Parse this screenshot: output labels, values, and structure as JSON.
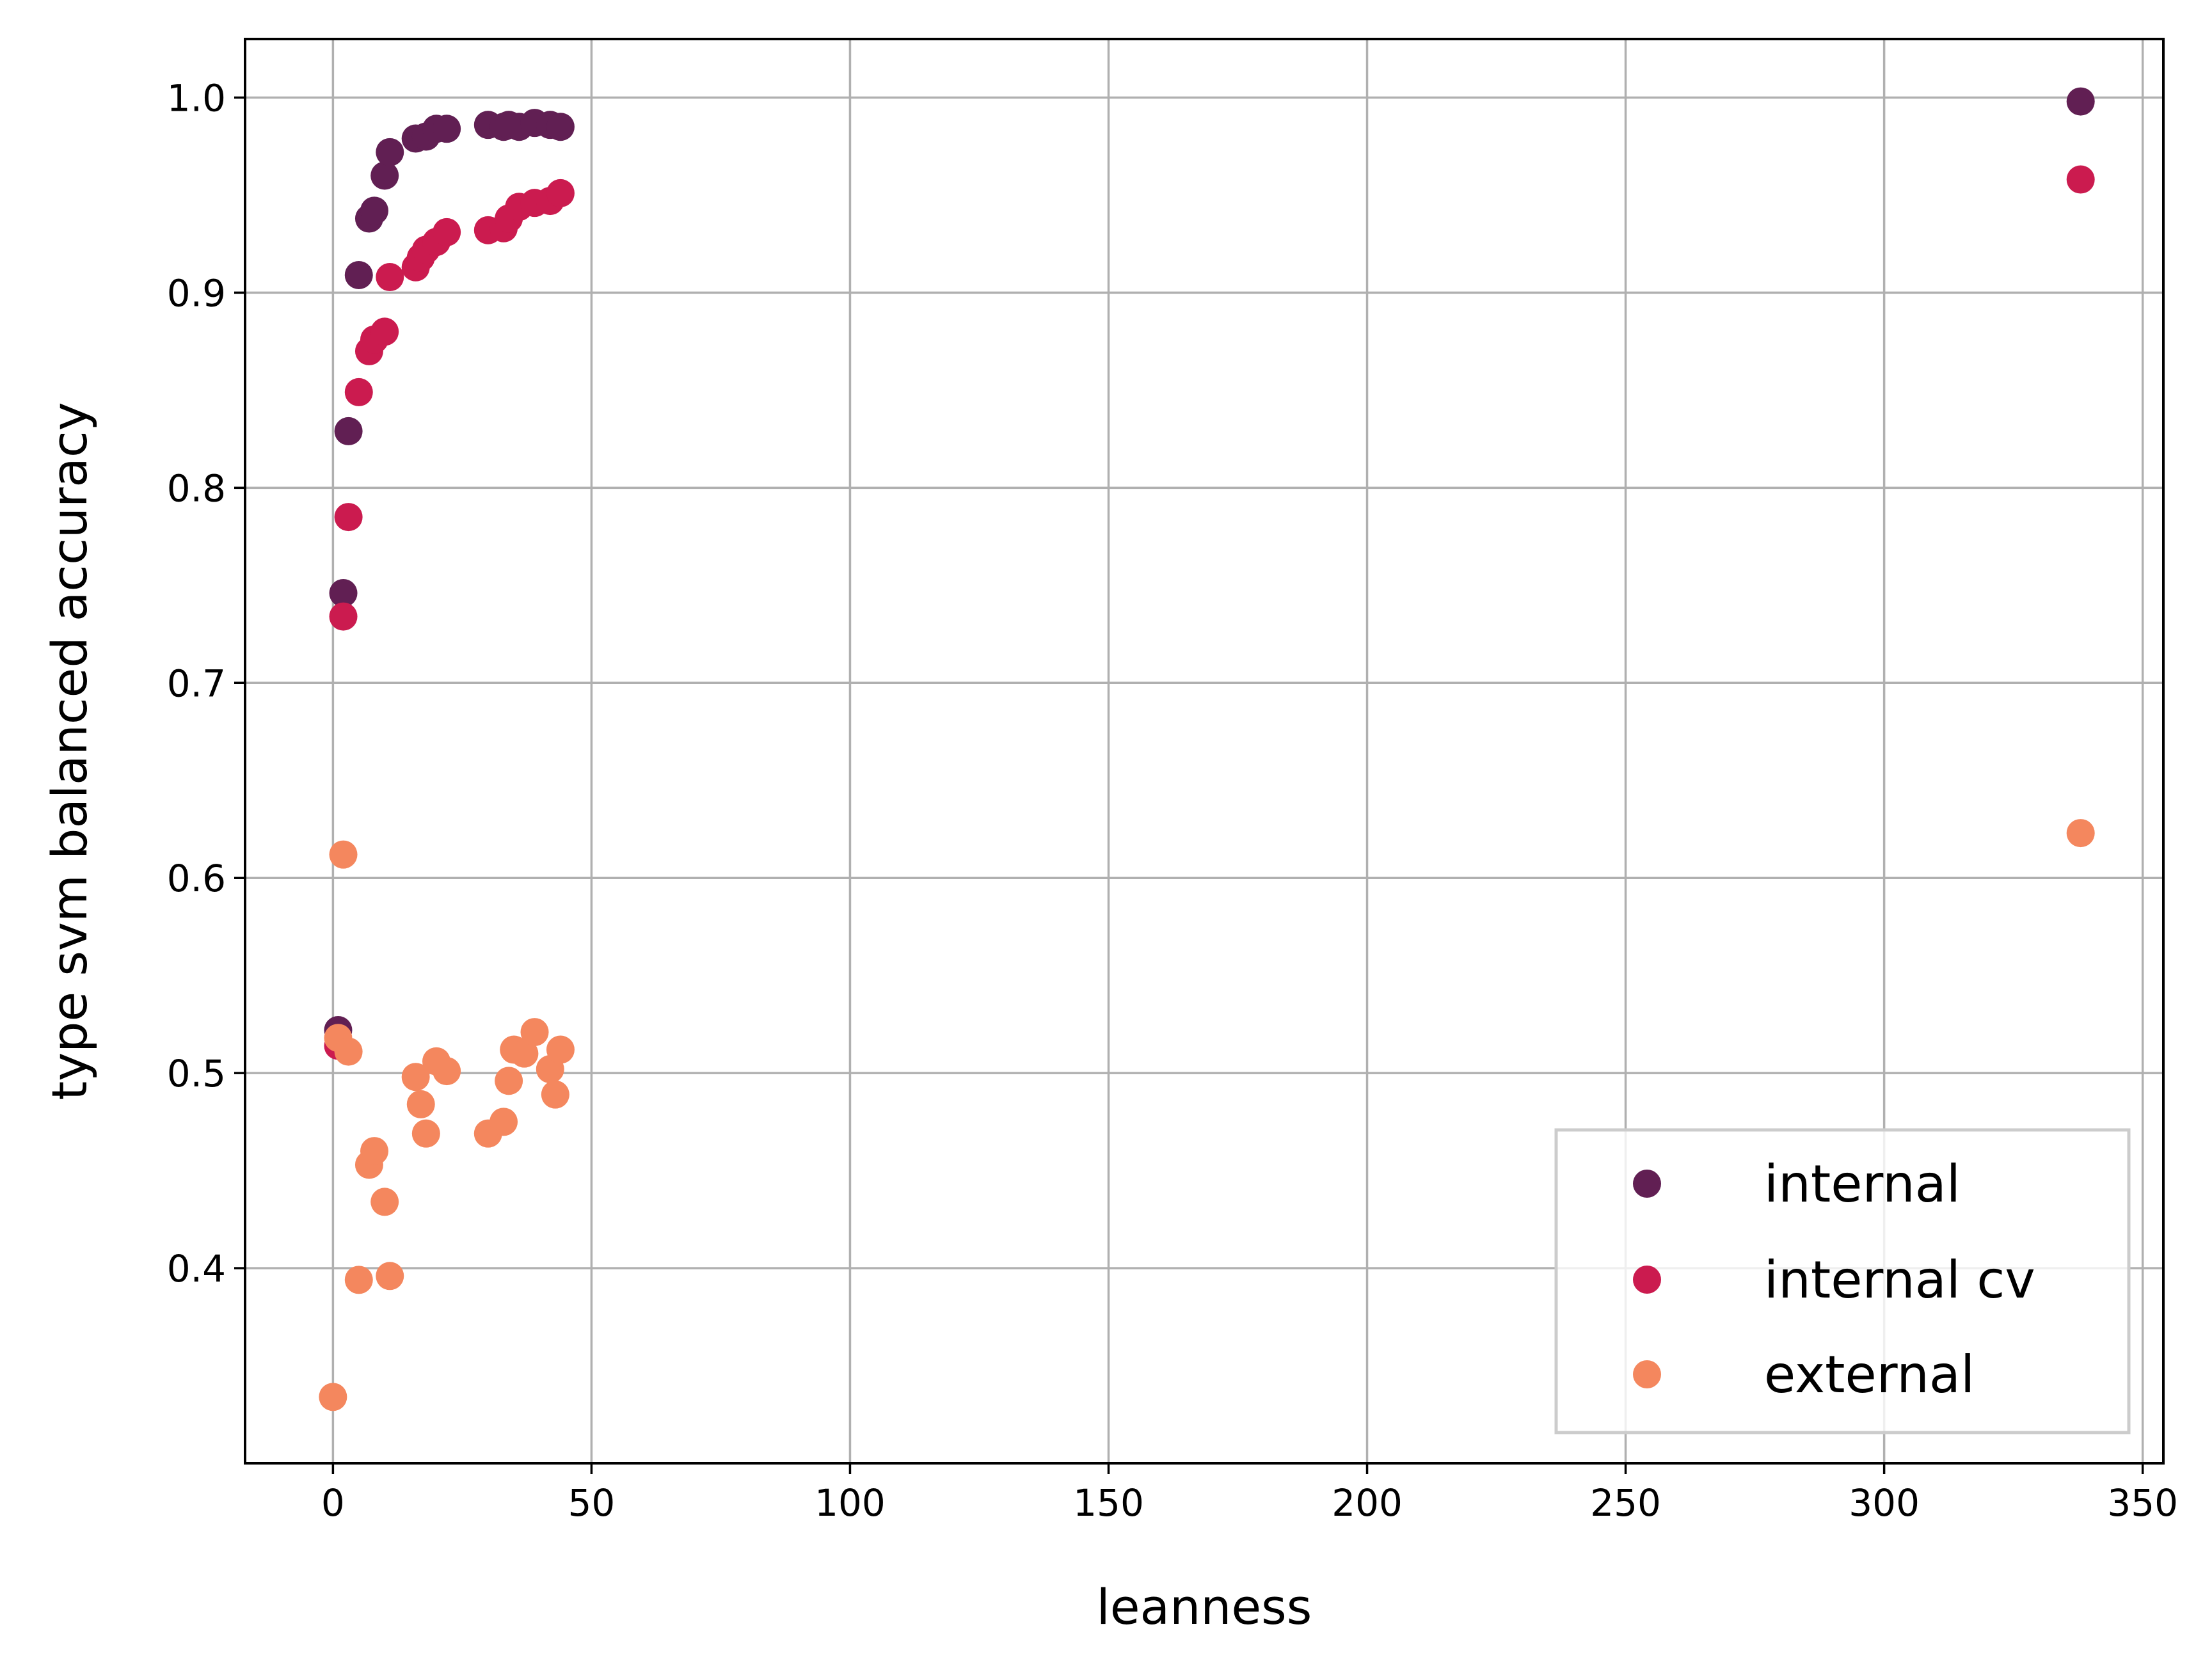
{
  "chart_data": {
    "type": "scatter",
    "title": "",
    "xlabel": "leanness",
    "ylabel": "type svm balanced accuracy",
    "xlim": [
      -17,
      354
    ],
    "ylim": [
      0.3,
      1.03
    ],
    "xticks": [
      0,
      50,
      100,
      150,
      200,
      250,
      300,
      350
    ],
    "xtick_labels": [
      "0",
      "50",
      "100",
      "150",
      "200",
      "250",
      "300",
      "350"
    ],
    "yticks": [
      0.4,
      0.5,
      0.6,
      0.7,
      0.8,
      0.9,
      1.0
    ],
    "ytick_labels": [
      "0.4",
      "0.5",
      "0.6",
      "0.7",
      "0.8",
      "0.9",
      "1.0"
    ],
    "grid": true,
    "legend_position": "lower-right",
    "series": [
      {
        "name": "internal",
        "color": "#611f53",
        "points": [
          [
            1,
            0.522
          ],
          [
            2,
            0.746
          ],
          [
            3,
            0.829
          ],
          [
            5,
            0.909
          ],
          [
            7,
            0.938
          ],
          [
            8,
            0.942
          ],
          [
            10,
            0.96
          ],
          [
            11,
            0.972
          ],
          [
            16,
            0.979
          ],
          [
            18,
            0.98
          ],
          [
            20,
            0.984
          ],
          [
            22,
            0.984
          ],
          [
            30,
            0.986
          ],
          [
            33,
            0.985
          ],
          [
            34,
            0.986
          ],
          [
            36,
            0.985
          ],
          [
            39,
            0.987
          ],
          [
            42,
            0.986
          ],
          [
            44,
            0.985
          ],
          [
            338,
            0.998
          ]
        ]
      },
      {
        "name": "internal cv",
        "color": "#cb1b4f",
        "points": [
          [
            1,
            0.514
          ],
          [
            2,
            0.734
          ],
          [
            3,
            0.785
          ],
          [
            5,
            0.849
          ],
          [
            7,
            0.87
          ],
          [
            8,
            0.876
          ],
          [
            10,
            0.88
          ],
          [
            11,
            0.908
          ],
          [
            16,
            0.913
          ],
          [
            17,
            0.918
          ],
          [
            18,
            0.922
          ],
          [
            20,
            0.926
          ],
          [
            22,
            0.931
          ],
          [
            30,
            0.932
          ],
          [
            33,
            0.933
          ],
          [
            34,
            0.938
          ],
          [
            36,
            0.944
          ],
          [
            39,
            0.946
          ],
          [
            42,
            0.947
          ],
          [
            44,
            0.951
          ],
          [
            338,
            0.958
          ]
        ]
      },
      {
        "name": "external",
        "color": "#f4875e",
        "points": [
          [
            0,
            0.334
          ],
          [
            1,
            0.518
          ],
          [
            2,
            0.612
          ],
          [
            3,
            0.511
          ],
          [
            5,
            0.394
          ],
          [
            7,
            0.453
          ],
          [
            8,
            0.46
          ],
          [
            10,
            0.434
          ],
          [
            11,
            0.396
          ],
          [
            16,
            0.498
          ],
          [
            17,
            0.484
          ],
          [
            18,
            0.469
          ],
          [
            20,
            0.506
          ],
          [
            22,
            0.501
          ],
          [
            30,
            0.469
          ],
          [
            33,
            0.475
          ],
          [
            34,
            0.496
          ],
          [
            35,
            0.512
          ],
          [
            37,
            0.51
          ],
          [
            39,
            0.521
          ],
          [
            42,
            0.502
          ],
          [
            43,
            0.489
          ],
          [
            44,
            0.512
          ],
          [
            338,
            0.623
          ]
        ]
      }
    ]
  }
}
